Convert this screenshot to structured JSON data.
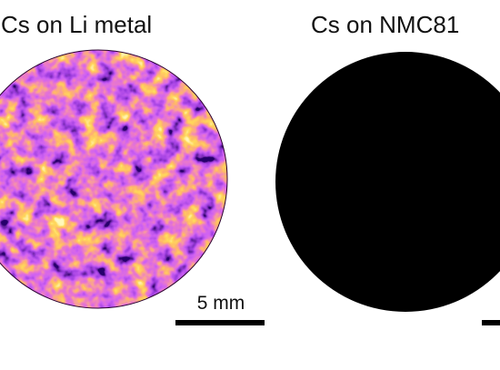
{
  "panels": [
    {
      "title": "Cs on Li metal",
      "scale_bar": "5 mm"
    },
    {
      "title": "Cs on NMC81"
    }
  ]
}
